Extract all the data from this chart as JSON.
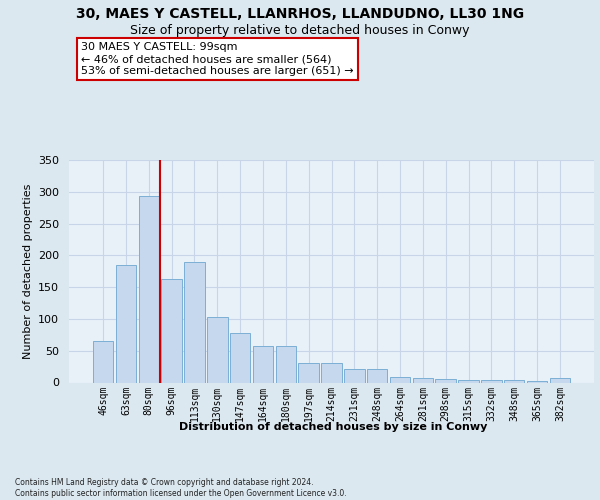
{
  "title": "30, MAES Y CASTELL, LLANRHOS, LLANDUDNO, LL30 1NG",
  "subtitle": "Size of property relative to detached houses in Conwy",
  "xlabel": "Distribution of detached houses by size in Conwy",
  "ylabel": "Number of detached properties",
  "bar_values": [
    65,
    185,
    293,
    163,
    190,
    103,
    78,
    57,
    57,
    30,
    30,
    21,
    22,
    8,
    7,
    5,
    4,
    4,
    4,
    2,
    7
  ],
  "bar_labels": [
    "46sqm",
    "63sqm",
    "80sqm",
    "96sqm",
    "113sqm",
    "130sqm",
    "147sqm",
    "164sqm",
    "180sqm",
    "197sqm",
    "214sqm",
    "231sqm",
    "248sqm",
    "264sqm",
    "281sqm",
    "298sqm",
    "315sqm",
    "332sqm",
    "348sqm",
    "365sqm",
    "382sqm"
  ],
  "bar_color": "#c5d8ee",
  "bar_edge_color": "#7bafd4",
  "vline_x": 2.5,
  "vline_color": "#cc0000",
  "annotation_text": "30 MAES Y CASTELL: 99sqm\n← 46% of detached houses are smaller (564)\n53% of semi-detached houses are larger (651) →",
  "annotation_box_color": "#ffffff",
  "annotation_box_edge": "#cc0000",
  "grid_color": "#c8d4e8",
  "background_color": "#dce8f0",
  "plot_bg_color": "#e8f0f8",
  "ylim": [
    0,
    350
  ],
  "yticks": [
    0,
    50,
    100,
    150,
    200,
    250,
    300,
    350
  ],
  "footer": "Contains HM Land Registry data © Crown copyright and database right 2024.\nContains public sector information licensed under the Open Government Licence v3.0."
}
